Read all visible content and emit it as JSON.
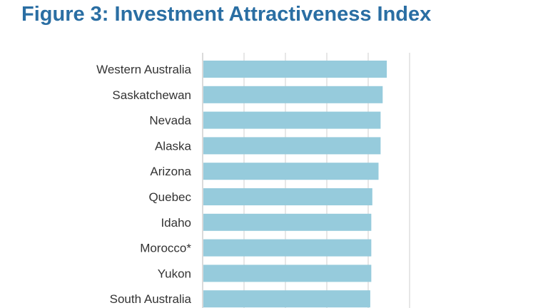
{
  "chart_data": {
    "type": "bar",
    "orientation": "horizontal",
    "title": "Figure 3: Investment Attractiveness Index",
    "categories": [
      "Western Australia",
      "Saskatchewan",
      "Nevada",
      "Alaska",
      "Arizona",
      "Quebec",
      "Idaho",
      "Morocco*",
      "Yukon",
      "South Australia"
    ],
    "values": [
      89,
      87,
      86,
      86,
      85,
      82,
      81.5,
      81.5,
      81.5,
      81
    ],
    "xlim": [
      0,
      100
    ],
    "grid": true,
    "bar_color": "#96cbdc",
    "grid_color": "#cfcfcf",
    "title_color": "#2a6ea3"
  }
}
